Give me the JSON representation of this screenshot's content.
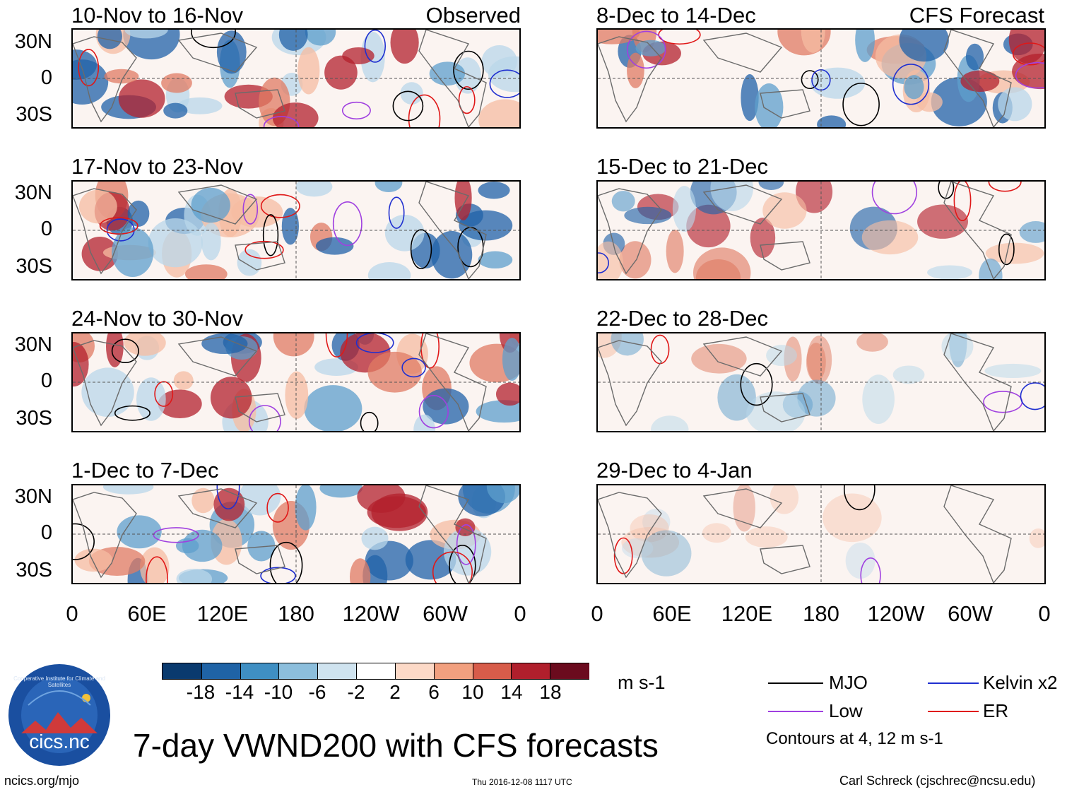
{
  "header": {
    "left_tag": "Observed",
    "right_tag": "CFS Forecast"
  },
  "panels_left": [
    {
      "title": "10-Nov to 16-Nov"
    },
    {
      "title": "17-Nov to 23-Nov"
    },
    {
      "title": "24-Nov to 30-Nov"
    },
    {
      "title": "1-Dec to 7-Dec"
    }
  ],
  "panels_right": [
    {
      "title": "8-Dec to 14-Dec"
    },
    {
      "title": "15-Dec to 21-Dec"
    },
    {
      "title": "22-Dec to 28-Dec"
    },
    {
      "title": "29-Dec to 4-Jan"
    }
  ],
  "lat_labels": [
    "30N",
    "0",
    "30S"
  ],
  "lon_labels": [
    "0",
    "60E",
    "120E",
    "180",
    "120W",
    "60W",
    "0"
  ],
  "colorbar": {
    "colors": [
      "#0a3a6e",
      "#1f63a6",
      "#3f8fc3",
      "#8cbedc",
      "#cfe3ef",
      "#ffffff",
      "#fcd9c7",
      "#f2a07f",
      "#d75c4a",
      "#b01f2c",
      "#6b0b1e"
    ],
    "labels": [
      "-18",
      "-14",
      "-10",
      "-6",
      "-2",
      "2",
      "6",
      "10",
      "14",
      "18"
    ],
    "units": "m s-1"
  },
  "legend": {
    "items": [
      {
        "label": "MJO",
        "color": "#000000"
      },
      {
        "label": "Kelvin x2",
        "color": "#1f2fd0"
      },
      {
        "label": "Low",
        "color": "#a040e0"
      },
      {
        "label": "ER",
        "color": "#e01818"
      }
    ],
    "contours_note": "Contours at 4, 12 m s-1"
  },
  "main_title": "7-day VWND200 with CFS forecasts",
  "logo_text": "cics.nc",
  "logo_ring_text": "Cooperative Institute for Climate and Satellites",
  "footer": {
    "left": "ncics.org/mjo",
    "center": "Thu 2016-12-08 1117 UTC",
    "right": "Carl Schreck (cjschrec@ncsu.edu)"
  }
}
